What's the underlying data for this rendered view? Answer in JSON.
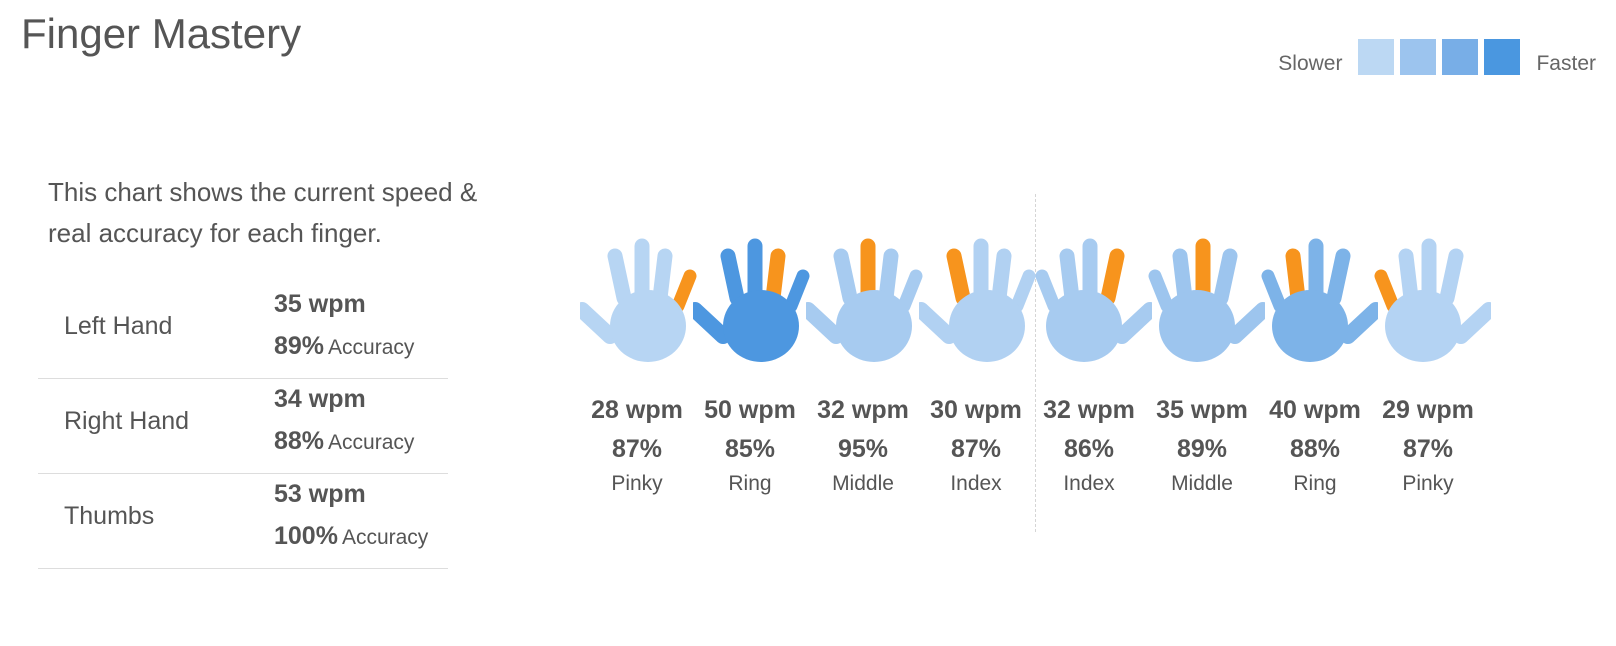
{
  "title": "Finger Mastery",
  "legend": {
    "slower_label": "Slower",
    "faster_label": "Faster",
    "swatches": [
      "#bcd8f3",
      "#9cc4ee",
      "#78aee7",
      "#4a97e0"
    ]
  },
  "intro": "This chart shows the current speed & real accuracy for each finger.",
  "summary": {
    "accuracy_word": "Accuracy",
    "rows": [
      {
        "label": "Left Hand",
        "wpm": "35 wpm",
        "accuracy": "89%"
      },
      {
        "label": "Right Hand",
        "wpm": "34 wpm",
        "accuracy": "88%"
      },
      {
        "label": "Thumbs",
        "wpm": "53 wpm",
        "accuracy": "100%"
      }
    ]
  },
  "highlight_color": "#f7941d",
  "fingers": [
    {
      "hand": "left",
      "finger": "Pinky",
      "wpm": "28 wpm",
      "accuracy": "87%",
      "color": "#b7d5f3",
      "icon": "left-hand-pinky-icon"
    },
    {
      "hand": "left",
      "finger": "Ring",
      "wpm": "50 wpm",
      "accuracy": "85%",
      "color": "#4d97e0",
      "icon": "left-hand-ring-icon"
    },
    {
      "hand": "left",
      "finger": "Middle",
      "wpm": "32 wpm",
      "accuracy": "95%",
      "color": "#a7cbf0",
      "icon": "left-hand-middle-icon"
    },
    {
      "hand": "left",
      "finger": "Index",
      "wpm": "30 wpm",
      "accuracy": "87%",
      "color": "#b1d1f2",
      "icon": "left-hand-index-icon"
    },
    {
      "hand": "right",
      "finger": "Index",
      "wpm": "32 wpm",
      "accuracy": "86%",
      "color": "#a7cbf0",
      "icon": "right-hand-index-icon"
    },
    {
      "hand": "right",
      "finger": "Middle",
      "wpm": "35 wpm",
      "accuracy": "89%",
      "color": "#9dc5ee",
      "icon": "right-hand-middle-icon"
    },
    {
      "hand": "right",
      "finger": "Ring",
      "wpm": "40 wpm",
      "accuracy": "88%",
      "color": "#7db3e8",
      "icon": "right-hand-ring-icon"
    },
    {
      "hand": "right",
      "finger": "Pinky",
      "wpm": "29 wpm",
      "accuracy": "87%",
      "color": "#b4d3f3",
      "icon": "right-hand-pinky-icon"
    }
  ]
}
